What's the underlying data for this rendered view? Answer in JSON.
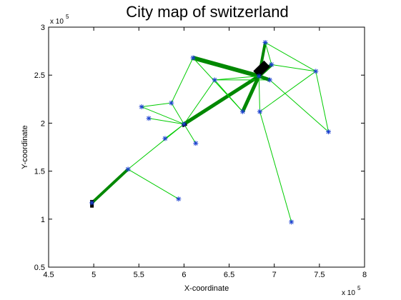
{
  "chart_data": {
    "type": "network",
    "title": "City map of switzerland",
    "xlabel": "X-coordinate",
    "ylabel": "Y-coordinate",
    "x_multiplier_label": "x 10",
    "x_multiplier_exponent": "5",
    "y_multiplier_label": "x 10",
    "y_multiplier_exponent": "5",
    "xlim": [
      4.5,
      8
    ],
    "ylim": [
      0.5,
      3
    ],
    "xticks": [
      4.5,
      5,
      5.5,
      6,
      6.5,
      7,
      7.5,
      8
    ],
    "xtick_labels": [
      "4.5",
      "5",
      "5.5",
      "6",
      "6.5",
      "7",
      "7.5",
      "8"
    ],
    "yticks": [
      0.5,
      1,
      1.5,
      2,
      2.5,
      3
    ],
    "ytick_labels": [
      "0.5",
      "1",
      "1.5",
      "2",
      "2.5",
      "3"
    ],
    "colors": {
      "edge": "#00cc00",
      "thick_edge": "#008800",
      "node": "#1a3fd0",
      "heavy_edge": "#000000"
    },
    "nodes": [
      {
        "x": 4.98,
        "y": 1.17
      },
      {
        "x": 5.38,
        "y": 1.52
      },
      {
        "x": 5.94,
        "y": 1.21
      },
      {
        "x": 5.79,
        "y": 1.84
      },
      {
        "x": 5.53,
        "y": 2.17
      },
      {
        "x": 5.61,
        "y": 2.05
      },
      {
        "x": 5.86,
        "y": 2.21
      },
      {
        "x": 6.0,
        "y": 1.99
      },
      {
        "x": 6.13,
        "y": 1.79
      },
      {
        "x": 6.1,
        "y": 2.68
      },
      {
        "x": 6.34,
        "y": 2.45
      },
      {
        "x": 6.65,
        "y": 2.12
      },
      {
        "x": 6.84,
        "y": 2.12
      },
      {
        "x": 6.83,
        "y": 2.49
      },
      {
        "x": 6.9,
        "y": 2.84
      },
      {
        "x": 6.95,
        "y": 2.45
      },
      {
        "x": 6.97,
        "y": 2.61
      },
      {
        "x": 7.46,
        "y": 2.54
      },
      {
        "x": 7.6,
        "y": 1.91
      },
      {
        "x": 7.19,
        "y": 0.97
      }
    ],
    "edges": [
      {
        "from": 0,
        "to": 1,
        "weight": 4
      },
      {
        "from": 1,
        "to": 2,
        "weight": 1
      },
      {
        "from": 1,
        "to": 7,
        "weight": 1
      },
      {
        "from": 3,
        "to": 7,
        "weight": 1
      },
      {
        "from": 4,
        "to": 7,
        "weight": 1
      },
      {
        "from": 4,
        "to": 6,
        "weight": 1
      },
      {
        "from": 5,
        "to": 7,
        "weight": 1
      },
      {
        "from": 6,
        "to": 9,
        "weight": 1
      },
      {
        "from": 6,
        "to": 7,
        "weight": 1
      },
      {
        "from": 7,
        "to": 8,
        "weight": 1
      },
      {
        "from": 7,
        "to": 10,
        "weight": 1
      },
      {
        "from": 7,
        "to": 13,
        "weight": 5
      },
      {
        "from": 9,
        "to": 13,
        "weight": 6
      },
      {
        "from": 9,
        "to": 11,
        "weight": 1
      },
      {
        "from": 10,
        "to": 11,
        "weight": 1
      },
      {
        "from": 10,
        "to": 15,
        "weight": 1
      },
      {
        "from": 11,
        "to": 13,
        "weight": 5
      },
      {
        "from": 12,
        "to": 13,
        "weight": 1
      },
      {
        "from": 12,
        "to": 19,
        "weight": 1
      },
      {
        "from": 12,
        "to": 17,
        "weight": 1
      },
      {
        "from": 13,
        "to": 14,
        "weight": 4
      },
      {
        "from": 13,
        "to": 15,
        "weight": 5
      },
      {
        "from": 13,
        "to": 16,
        "weight": 5
      },
      {
        "from": 14,
        "to": 17,
        "weight": 1
      },
      {
        "from": 14,
        "to": 16,
        "weight": 1
      },
      {
        "from": 16,
        "to": 17,
        "weight": 1
      },
      {
        "from": 17,
        "to": 18,
        "weight": 1
      },
      {
        "from": 15,
        "to": 18,
        "weight": 1
      },
      {
        "from": 13,
        "to": 10,
        "weight": 1
      }
    ],
    "heavy_edges": [
      {
        "from": [
          6.8,
          2.51
        ],
        "to": [
          6.92,
          2.62
        ],
        "weight": 12
      },
      {
        "from": [
          4.98,
          1.12
        ],
        "to": [
          4.98,
          1.2
        ],
        "weight": 5
      },
      {
        "from": [
          5.98,
          1.97
        ],
        "to": [
          6.03,
          1.99
        ],
        "weight": 4
      }
    ]
  }
}
